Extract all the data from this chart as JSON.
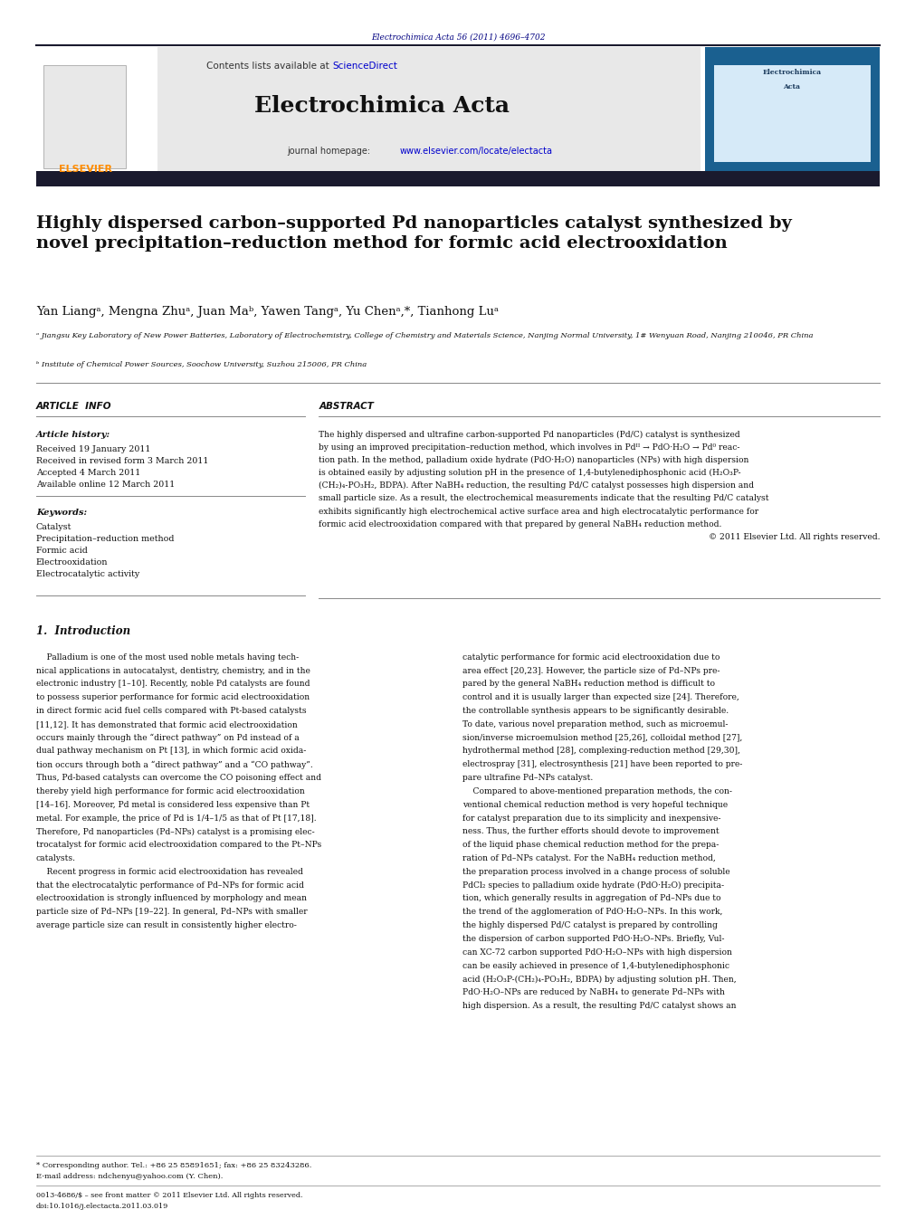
{
  "page_width": 9.92,
  "page_height": 13.23,
  "bg_color": "#ffffff",
  "journal_ref": "Electrochimica Acta 56 (2011) 4696–4702",
  "journal_ref_color": "#000080",
  "header_bg": "#e8e8e8",
  "elsevier_color": "#ff8c00",
  "title": "Highly dispersed carbon–supported Pd nanoparticles catalyst synthesized by\nnovel precipitation–reduction method for formic acid electrooxidation",
  "authors": "Yan Liangᵃ, Mengna Zhuᵃ, Juan Maᵇ, Yawen Tangᵃ, Yu Chenᵃ,*, Tianhong Luᵃ",
  "affiliation_a": "ᵃ Jiangsu Key Laboratory of New Power Batteries, Laboratory of Electrochemistry, College of Chemistry and Materials Science, Nanjing Normal University, 1# Wenyuan Road, Nanjing 210046, PR China",
  "affiliation_b": "ᵇ Institute of Chemical Power Sources, Soochow University, Suzhou 215006, PR China",
  "article_info_header": "ARTICLE  INFO",
  "article_history_label": "Article history:",
  "received": "Received 19 January 2011",
  "revised": "Received in revised form 3 March 2011",
  "accepted": "Accepted 4 March 2011",
  "available": "Available online 12 March 2011",
  "keywords_label": "Keywords:",
  "keyword1": "Catalyst",
  "keyword2": "Precipitation–reduction method",
  "keyword3": "Formic acid",
  "keyword4": "Electrooxidation",
  "keyword5": "Electrocatalytic activity",
  "abstract_header": "ABSTRACT",
  "footer_text1": "* Corresponding author. Tel.: +86 25 85891651; fax: +86 25 83243286.",
  "footer_text2": "E-mail address: ndchenyu@yahoo.com (Y. Chen).",
  "footer_text3": "0013-4686/$ – see front matter © 2011 Elsevier Ltd. All rights reserved.",
  "footer_text4": "doi:10.1016/j.electacta.2011.03.019",
  "dark_bar_color": "#1a1a2e"
}
